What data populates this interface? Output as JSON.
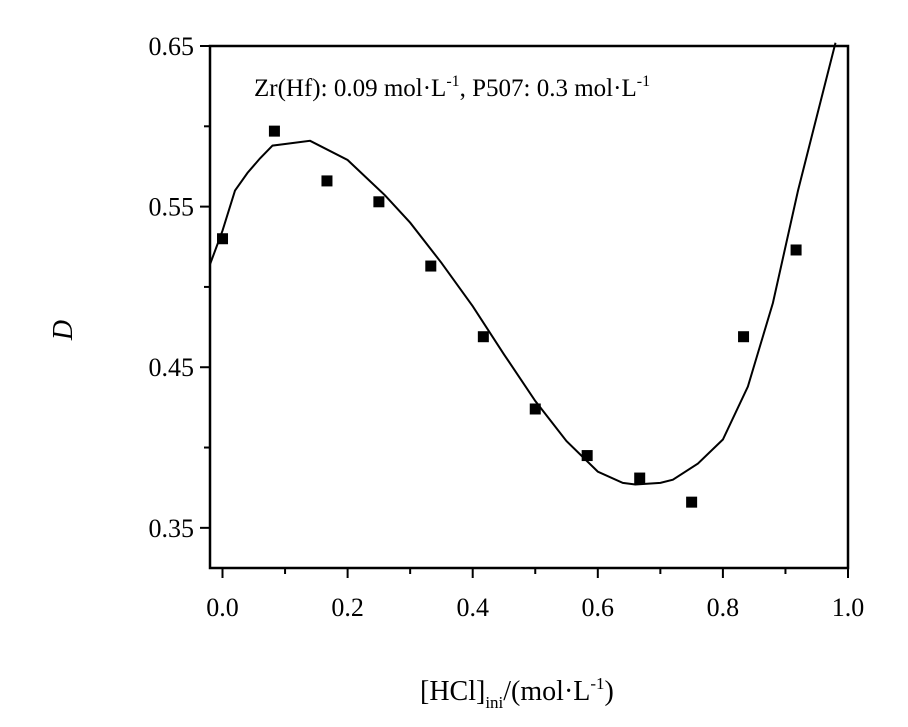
{
  "chart_data": {
    "type": "scatter",
    "title": "",
    "annotation": {
      "prefix": "Zr(Hf): 0.09 mol·L",
      "sup1": "-1",
      "middle": ", P507: 0.3 mol·L",
      "sup2": "-1"
    },
    "xlabel": {
      "base": "[HCl]",
      "sub": "ini",
      "rest": "/(mol·L",
      "sup": "-1",
      "close": ")"
    },
    "ylabel": "D",
    "xlim": [
      -0.02,
      1.0
    ],
    "ylim": [
      0.325,
      0.65
    ],
    "x_ticks": [
      0.0,
      0.2,
      0.4,
      0.6,
      0.8,
      1.0
    ],
    "x_tick_labels": [
      "0.0",
      "0.2",
      "0.4",
      "0.6",
      "0.8",
      "1.0"
    ],
    "x_minor_ticks": [
      0.1,
      0.3,
      0.5,
      0.7,
      0.9
    ],
    "y_ticks": [
      0.35,
      0.45,
      0.55,
      0.65
    ],
    "y_tick_labels": [
      "0.35",
      "0.45",
      "0.55",
      "0.65"
    ],
    "y_minor_ticks": [
      0.4,
      0.5,
      0.6
    ],
    "grid": false,
    "series": [
      {
        "kind": "points",
        "marker": "square",
        "x": [
          0.0,
          0.083,
          0.167,
          0.25,
          0.333,
          0.417,
          0.5,
          0.583,
          0.667,
          0.75,
          0.833,
          0.917
        ],
        "y": [
          0.53,
          0.597,
          0.566,
          0.553,
          0.513,
          0.469,
          0.424,
          0.395,
          0.381,
          0.366,
          0.469,
          0.523
        ]
      },
      {
        "kind": "fit-line",
        "x": [
          -0.02,
          0.0,
          0.02,
          0.04,
          0.06,
          0.08,
          0.1,
          0.14,
          0.2,
          0.26,
          0.3,
          0.35,
          0.4,
          0.45,
          0.5,
          0.55,
          0.6,
          0.64,
          0.66,
          0.7,
          0.72,
          0.76,
          0.8,
          0.84,
          0.88,
          0.92,
          0.95,
          0.98
        ],
        "y": [
          0.514,
          0.535,
          0.56,
          0.571,
          0.58,
          0.588,
          0.589,
          0.591,
          0.579,
          0.557,
          0.54,
          0.515,
          0.488,
          0.458,
          0.429,
          0.404,
          0.385,
          0.378,
          0.377,
          0.378,
          0.38,
          0.39,
          0.405,
          0.438,
          0.49,
          0.56,
          0.606,
          0.652
        ]
      }
    ],
    "colors": {
      "line": "#000000",
      "marker": "#000000",
      "axis": "#000000"
    }
  }
}
